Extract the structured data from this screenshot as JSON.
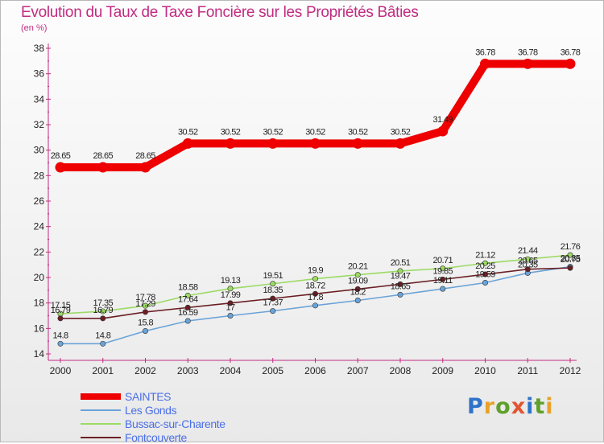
{
  "title": "Evolution du Taux de Taxe Foncière sur les Propriétés Bâties",
  "unit_label": "(en %)",
  "logo": {
    "text": "Proxiti",
    "colors": [
      "#2e73c9",
      "#e8a12a",
      "#5fa02b",
      "#e25530",
      "#2e73c9",
      "#5fa02b",
      "#e8a12a"
    ]
  },
  "chart_data": {
    "type": "line",
    "title": "Evolution du Taux de Taxe Foncière sur les Propriétés Bâties",
    "ylabel": "(en %)",
    "xlabel": "",
    "ylim": [
      14,
      38
    ],
    "yticks": [
      14,
      16,
      18,
      20,
      22,
      24,
      26,
      28,
      30,
      32,
      34,
      36,
      38
    ],
    "grid": false,
    "legend_position": "bottom-left",
    "x": [
      "2000",
      "2001",
      "2002",
      "2003",
      "2004",
      "2005",
      "2006",
      "2007",
      "2008",
      "2009",
      "2010",
      "2011",
      "2012"
    ],
    "series": [
      {
        "name": "SAINTES",
        "color": "#ee0000",
        "values": [
          28.65,
          28.65,
          28.65,
          30.52,
          30.52,
          30.52,
          30.52,
          30.52,
          30.52,
          31.49,
          36.78,
          36.78,
          36.78
        ],
        "labels": [
          "28.65",
          "28.65",
          "28.65",
          "30.52",
          "30.52",
          "30.52",
          "30.52",
          "30.52",
          "30.52",
          "31.49",
          "36.78",
          "36.78",
          "36.78"
        ]
      },
      {
        "name": "Les Gonds",
        "color": "#6aa3d8",
        "values": [
          14.8,
          14.8,
          15.8,
          16.59,
          17.0,
          17.37,
          17.8,
          18.2,
          18.65,
          19.11,
          19.59,
          20.35,
          20.85
        ],
        "labels": [
          "14.8",
          "14.8",
          "15.8",
          "16.59",
          "17",
          "17.37",
          "17.8",
          "18.2",
          "18.65",
          "19.11",
          "19.59",
          "20.35",
          "20.85"
        ]
      },
      {
        "name": "Bussac-sur-Charente",
        "color": "#9bdb63",
        "values": [
          17.15,
          17.35,
          17.78,
          18.58,
          19.13,
          19.51,
          19.9,
          20.21,
          20.51,
          20.71,
          21.12,
          21.44,
          21.76
        ],
        "labels": [
          "17.15",
          "17.35",
          "17.78",
          "18.58",
          "19.13",
          "19.51",
          "19.9",
          "20.21",
          "20.51",
          "20.71",
          "21.12",
          "21.44",
          "21.76"
        ]
      },
      {
        "name": "Fontcouverte",
        "color": "#6b1f24",
        "values": [
          16.79,
          16.79,
          17.29,
          17.64,
          17.99,
          18.35,
          18.72,
          19.09,
          19.47,
          19.85,
          20.25,
          20.65,
          20.75
        ],
        "labels": [
          "16.79",
          "16.79",
          "17.29",
          "17.64",
          "17.99",
          "18.35",
          "18.72",
          "19.09",
          "19.47",
          "19.85",
          "20.25",
          "20.65",
          "20.75"
        ]
      }
    ]
  }
}
